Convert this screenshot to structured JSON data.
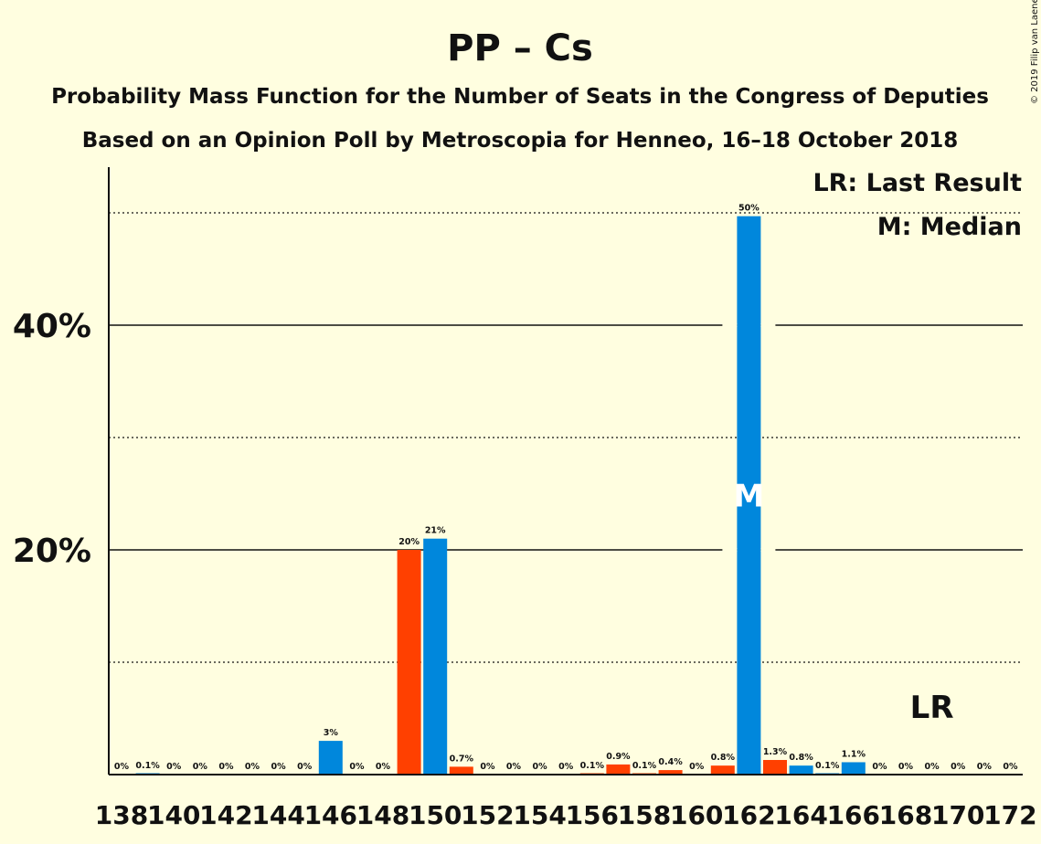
{
  "title": "PP – Cs",
  "subtitle1": "Probability Mass Function for the Number of Seats in the Congress of Deputies",
  "subtitle2": "Based on an Opinion Poll by Metroscopia for Henneo, 16–18 October 2018",
  "copyright": "© 2019 Filip van Laenen",
  "legend": {
    "lr": "LR: Last Result",
    "median": "M: Median"
  },
  "markers": {
    "last_result_label": "LR",
    "median_label": "M"
  },
  "colors": {
    "background": "#FFFEE0",
    "blue": "#0087DC",
    "orange": "#FF4000"
  },
  "chart_data": {
    "type": "bar",
    "ylim": [
      0,
      54
    ],
    "yticks": [
      {
        "value": 20,
        "label": "20%"
      },
      {
        "value": 40,
        "label": "40%"
      }
    ],
    "minor_gridlines": [
      10,
      30,
      50
    ],
    "x_tick_labels": [
      "138",
      "140",
      "142",
      "144",
      "146",
      "148",
      "150",
      "152",
      "154",
      "156",
      "158",
      "160",
      "162",
      "164",
      "166",
      "168",
      "170",
      "172"
    ],
    "bars": [
      {
        "seats": 138,
        "value": 0,
        "label": "0%",
        "series": "blue"
      },
      {
        "seats": 139,
        "value": 0.1,
        "label": "0.1%",
        "series": "blue"
      },
      {
        "seats": 140,
        "value": 0,
        "label": "0%",
        "series": "blue"
      },
      {
        "seats": 141,
        "value": 0,
        "label": "0%",
        "series": "blue"
      },
      {
        "seats": 142,
        "value": 0,
        "label": "0%",
        "series": "blue"
      },
      {
        "seats": 143,
        "value": 0,
        "label": "0%",
        "series": "blue"
      },
      {
        "seats": 144,
        "value": 0,
        "label": "0%",
        "series": "blue"
      },
      {
        "seats": 145,
        "value": 0,
        "label": "0%",
        "series": "blue"
      },
      {
        "seats": 146,
        "value": 3,
        "label": "3%",
        "series": "blue"
      },
      {
        "seats": 147,
        "value": 0,
        "label": "0%",
        "series": "blue"
      },
      {
        "seats": 148,
        "value": 0,
        "label": "0%",
        "series": "blue"
      },
      {
        "seats": 149,
        "value": 20,
        "label": "20%",
        "series": "orange"
      },
      {
        "seats": 150,
        "value": 21,
        "label": "21%",
        "series": "blue"
      },
      {
        "seats": 151,
        "value": 0.7,
        "label": "0.7%",
        "series": "orange"
      },
      {
        "seats": 152,
        "value": 0,
        "label": "0%",
        "series": "blue"
      },
      {
        "seats": 153,
        "value": 0,
        "label": "0%",
        "series": "blue"
      },
      {
        "seats": 154,
        "value": 0,
        "label": "0%",
        "series": "blue"
      },
      {
        "seats": 155,
        "value": 0,
        "label": "0%",
        "series": "blue"
      },
      {
        "seats": 156,
        "value": 0.1,
        "label": "0.1%",
        "series": "orange"
      },
      {
        "seats": 157,
        "value": 0.9,
        "label": "0.9%",
        "series": "orange"
      },
      {
        "seats": 158,
        "value": 0.1,
        "label": "0.1%",
        "series": "orange"
      },
      {
        "seats": 159,
        "value": 0.4,
        "label": "0.4%",
        "series": "orange"
      },
      {
        "seats": 160,
        "value": 0,
        "label": "0%",
        "series": "blue"
      },
      {
        "seats": 161,
        "value": 0.8,
        "label": "0.8%",
        "series": "orange"
      },
      {
        "seats": 162,
        "value": 49.7,
        "label": "50%",
        "series": "blue"
      },
      {
        "seats": 163,
        "value": 1.3,
        "label": "1.3%",
        "series": "orange"
      },
      {
        "seats": 164,
        "value": 0.8,
        "label": "0.8%",
        "series": "blue"
      },
      {
        "seats": 165,
        "value": 0.1,
        "label": "0.1%",
        "series": "blue"
      },
      {
        "seats": 166,
        "value": 1.1,
        "label": "1.1%",
        "series": "blue"
      },
      {
        "seats": 167,
        "value": 0,
        "label": "0%",
        "series": "blue"
      },
      {
        "seats": 168,
        "value": 0,
        "label": "0%",
        "series": "blue"
      },
      {
        "seats": 169,
        "value": 0,
        "label": "0%",
        "series": "blue"
      },
      {
        "seats": 170,
        "value": 0,
        "label": "0%",
        "series": "blue"
      },
      {
        "seats": 171,
        "value": 0,
        "label": "0%",
        "series": "blue"
      },
      {
        "seats": 172,
        "value": 0,
        "label": "0%",
        "series": "blue"
      }
    ],
    "median_seats": 162,
    "last_result_seats": 169
  }
}
